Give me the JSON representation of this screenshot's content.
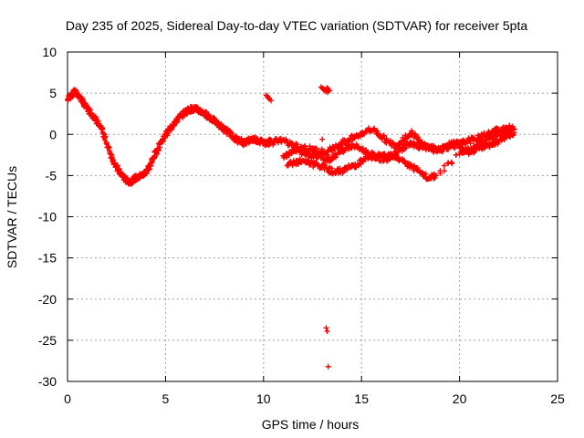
{
  "chart_data": {
    "type": "scatter",
    "title": "Day 235 of 2025, Sidereal Day-to-day VTEC variation (SDTVAR) for receiver 5pta",
    "xlabel": "GPS time / hours",
    "ylabel": "SDTVAR / TECUs",
    "xlim": [
      0,
      25
    ],
    "ylim": [
      -30,
      10
    ],
    "xticks": [
      "0",
      "5",
      "10",
      "15",
      "20",
      "25"
    ],
    "yticks": [
      "10",
      "5",
      "0",
      "-5",
      "-10",
      "-15",
      "-20",
      "-25",
      "-30"
    ],
    "grid": true,
    "marker": "+",
    "color": "#ff0000",
    "series": [
      {
        "name": "main-trace",
        "x": [
          0.0,
          0.2,
          0.4,
          0.6,
          0.8,
          1.0,
          1.2,
          1.4,
          1.6,
          1.8,
          2.0,
          2.2,
          2.4,
          2.6,
          2.8,
          3.0,
          3.2,
          3.4,
          3.6,
          3.8,
          4.0,
          4.2,
          4.4,
          4.6,
          4.8,
          5.0,
          5.2,
          5.4,
          5.6,
          5.8,
          6.0,
          6.2,
          6.4,
          6.6,
          6.8,
          7.0,
          7.2,
          7.4,
          7.6,
          7.8,
          8.0,
          8.2,
          8.4,
          8.6,
          8.8,
          9.0,
          9.2,
          9.4,
          9.6,
          9.8,
          10.0,
          10.2,
          10.4
        ],
        "y": [
          4.2,
          4.8,
          5.2,
          4.6,
          3.8,
          3.2,
          2.6,
          2.0,
          1.2,
          0.2,
          -1.0,
          -2.4,
          -3.5,
          -4.4,
          -5.0,
          -5.6,
          -5.8,
          -5.4,
          -5.2,
          -5.0,
          -4.6,
          -3.8,
          -2.8,
          -1.8,
          -0.8,
          0.0,
          0.6,
          1.2,
          1.8,
          2.3,
          2.7,
          3.0,
          3.1,
          3.0,
          2.8,
          2.5,
          2.2,
          1.8,
          1.4,
          1.0,
          0.6,
          0.3,
          -0.2,
          -0.6,
          -0.8,
          -1.0,
          -0.8,
          -0.6,
          -0.6,
          -0.8,
          -1.0,
          -1.0,
          -0.8
        ]
      },
      {
        "name": "band-upper",
        "x": [
          10.4,
          10.8,
          11.2,
          11.6,
          12.0,
          12.4,
          12.8,
          13.2,
          13.6,
          14.0,
          14.4,
          14.8,
          15.2,
          15.6,
          16.0,
          16.4,
          16.8,
          17.2,
          17.6,
          18.0,
          18.4,
          18.8,
          19.2,
          19.6,
          20.0,
          20.4,
          20.8,
          21.2,
          21.6,
          22.0,
          22.4,
          22.8
        ],
        "y": [
          -1.0,
          -0.6,
          -1.0,
          -1.4,
          -1.6,
          -1.8,
          -2.0,
          -2.2,
          -1.6,
          -1.0,
          -0.6,
          -0.2,
          0.4,
          0.6,
          -0.2,
          -1.0,
          -1.4,
          -0.4,
          0.2,
          -1.0,
          -1.6,
          -1.8,
          -1.6,
          -1.4,
          -1.2,
          -0.8,
          -0.6,
          -0.2,
          0.2,
          0.6,
          0.8,
          0.6
        ]
      },
      {
        "name": "band-middle",
        "x": [
          11.0,
          11.4,
          11.8,
          12.2,
          12.6,
          13.0,
          13.4,
          13.8,
          14.2,
          14.6,
          15.0,
          15.4,
          15.8,
          16.2,
          16.6,
          17.0,
          17.4,
          17.8,
          18.2,
          18.6,
          19.0,
          19.4,
          19.8,
          20.2,
          20.6,
          21.0,
          21.4,
          21.8,
          22.2,
          22.6
        ],
        "y": [
          -2.6,
          -2.2,
          -2.0,
          -2.4,
          -2.6,
          -2.8,
          -3.0,
          -2.2,
          -1.6,
          -1.4,
          -1.8,
          -2.4,
          -2.8,
          -3.0,
          -2.6,
          -1.8,
          -1.2,
          -1.4,
          -1.6,
          -1.8,
          -2.0,
          -1.4,
          -1.0,
          -1.8,
          -2.2,
          -1.4,
          -0.6,
          -0.2,
          0.2,
          0.4
        ]
      },
      {
        "name": "band-lower",
        "x": [
          11.2,
          11.6,
          12.0,
          12.4,
          12.8,
          13.2,
          13.6,
          14.0,
          14.4,
          14.8,
          15.2,
          15.6,
          16.0,
          16.4,
          16.8,
          17.2,
          17.6,
          18.0,
          18.4,
          18.8,
          20.0,
          20.4,
          20.8,
          21.2,
          21.6,
          22.0,
          22.4,
          22.8
        ],
        "y": [
          -3.8,
          -3.4,
          -3.2,
          -3.6,
          -3.8,
          -4.0,
          -4.6,
          -4.4,
          -4.0,
          -3.6,
          -3.0,
          -2.8,
          -2.6,
          -2.4,
          -2.8,
          -3.4,
          -4.0,
          -4.6,
          -5.4,
          -5.0,
          -2.4,
          -2.0,
          -1.6,
          -1.6,
          -1.2,
          -0.8,
          -0.2,
          0.2
        ]
      },
      {
        "name": "outliers",
        "x": [
          10.2,
          10.3,
          13.0,
          13.1,
          13.2,
          13.3,
          13.2,
          13.25,
          13.3,
          13.0
        ],
        "y": [
          4.6,
          4.3,
          5.6,
          5.4,
          5.3,
          5.5,
          -23.5,
          -23.9,
          -28.2,
          -0.6
        ]
      }
    ]
  }
}
